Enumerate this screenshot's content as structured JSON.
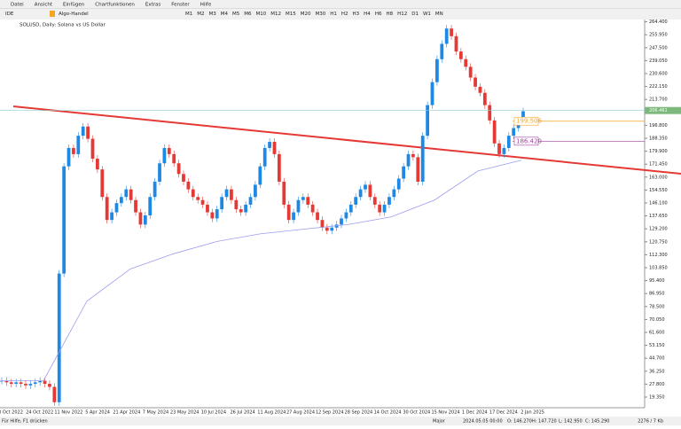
{
  "menu": [
    "Datei",
    "Ansicht",
    "Einfügen",
    "Chartfunktionen",
    "Extras",
    "Fenster",
    "Hilfe"
  ],
  "toolbar": {
    "ide": "IDE",
    "algo": "Algo-Handel",
    "timeframes": [
      "M1",
      "M2",
      "M3",
      "M4",
      "M5",
      "M6",
      "M10",
      "M12",
      "M15",
      "M20",
      "M30",
      "H1",
      "H2",
      "H3",
      "H4",
      "H6",
      "H8",
      "H12",
      "D1",
      "W1",
      "MN"
    ]
  },
  "chart_data": {
    "type": "candlestick",
    "title": "SOLUSD, Daily:  Solana vs US Dollar",
    "closes": [
      30,
      29,
      28,
      29,
      28,
      27,
      28,
      29,
      30,
      28,
      26,
      16,
      100,
      170,
      182,
      178,
      190,
      196,
      188,
      175,
      168,
      150,
      135,
      140,
      146,
      150,
      155,
      148,
      140,
      132,
      138,
      150,
      160,
      172,
      182,
      178,
      172,
      165,
      160,
      155,
      150,
      148,
      145,
      140,
      136,
      142,
      150,
      155,
      148,
      142,
      140,
      145,
      150,
      158,
      170,
      182,
      186,
      178,
      160,
      145,
      135,
      140,
      148,
      150,
      145,
      140,
      135,
      130,
      128,
      130,
      132,
      136,
      140,
      145,
      150,
      155,
      158,
      150,
      145,
      140,
      145,
      150,
      155,
      162,
      170,
      178,
      176,
      160,
      190,
      210,
      225,
      240,
      250,
      260,
      255,
      245,
      240,
      235,
      228,
      222,
      218,
      210,
      200,
      185,
      178,
      182,
      190,
      195,
      200,
      206
    ],
    "up_color": "#1e88e5",
    "down_color": "#e53935",
    "ma_color": "#9c9cf0",
    "ma": [
      30,
      30,
      82,
      103,
      113,
      121,
      126,
      129,
      132,
      137,
      148,
      167,
      174
    ],
    "ylim": [
      12.4,
      265.9
    ],
    "yticks": [
      {
        "value": 264.4,
        "label": "264.400"
      },
      {
        "value": 255.95,
        "label": "255.950"
      },
      {
        "value": 247.5,
        "label": "247.500"
      },
      {
        "value": 239.05,
        "label": "239.050"
      },
      {
        "value": 230.6,
        "label": "230.600"
      },
      {
        "value": 222.15,
        "label": "222.150"
      },
      {
        "value": 213.7,
        "label": "213.700"
      },
      {
        "value": 196.8,
        "label": "196.800"
      },
      {
        "value": 188.35,
        "label": "188.350"
      },
      {
        "value": 179.9,
        "label": "179.900"
      },
      {
        "value": 171.45,
        "label": "171.450"
      },
      {
        "value": 163,
        "label": "163.000"
      },
      {
        "value": 154.55,
        "label": "154.550"
      },
      {
        "value": 146.1,
        "label": "146.100"
      },
      {
        "value": 137.65,
        "label": "137.650"
      },
      {
        "value": 129.2,
        "label": "129.200"
      },
      {
        "value": 120.75,
        "label": "120.750"
      },
      {
        "value": 112.3,
        "label": "112.300"
      },
      {
        "value": 103.85,
        "label": "103.850"
      },
      {
        "value": 95.4,
        "label": "95.400"
      },
      {
        "value": 86.95,
        "label": "86.950"
      },
      {
        "value": 78.5,
        "label": "78.500"
      },
      {
        "value": 70.05,
        "label": "70.050"
      },
      {
        "value": 61.6,
        "label": "61.600"
      },
      {
        "value": 53.15,
        "label": "53.150"
      },
      {
        "value": 44.7,
        "label": "44.700"
      },
      {
        "value": 36.25,
        "label": "36.250"
      },
      {
        "value": 27.8,
        "label": "27.800"
      },
      {
        "value": 19.35,
        "label": "19.350"
      }
    ],
    "date_labels": [
      "3 Oct 2022",
      "24 Oct 2022",
      "11 Nov 2022",
      "5 Apr 2024",
      "21 Apr 2024",
      "7 May 2024",
      "23 May 2024",
      "10 Jul 2024",
      "26 Jul 2024",
      "11 Aug 2024",
      "27 Aug 2024",
      "12 Sep 2024",
      "28 Sep 2024",
      "14 Oct 2024",
      "30 Oct 2024",
      "15 Nov 2024",
      "1 Dec 2024",
      "17 Dec 2024",
      "2 Jan 2025"
    ],
    "levels": [
      {
        "value": 206.461,
        "label": "206.461",
        "color": "#8fd0d0"
      },
      {
        "value": 199.506,
        "label": "199.506",
        "color": "#f5a623"
      },
      {
        "value": 186.42,
        "label": "186.420",
        "color": "#a040a0"
      }
    ]
  },
  "status": [
    "Für Hilfe, F1 drücken",
    "Major",
    "2024.05.05 00:00",
    "O: 146.270",
    "H: 147.720",
    "L: 142.950",
    "C: 145.290",
    "2276 / 7 Kb"
  ]
}
